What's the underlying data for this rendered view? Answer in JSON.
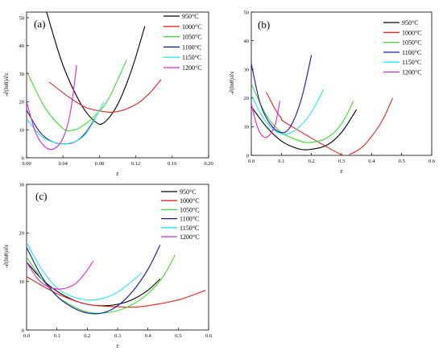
{
  "chart_data": [
    {
      "type": "line",
      "panel_label": "(a)",
      "xlabel": "ε",
      "ylabel": "-∂(lnθ)/∂ε",
      "xlim": [
        0,
        0.2
      ],
      "ylim": [
        0,
        52
      ],
      "xticks": [
        "0.00",
        "0.04",
        "0.08",
        "0.12",
        "0.16",
        "0.20"
      ],
      "xtick_values": [
        0,
        0.04,
        0.08,
        0.12,
        0.16,
        0.2
      ],
      "yticks": [
        "0",
        "10",
        "20",
        "30",
        "40",
        "50"
      ],
      "ytick_values": [
        0,
        10,
        20,
        30,
        40,
        50
      ],
      "legend_position": "top-right",
      "series": [
        {
          "name": "950°C",
          "color": "#000000",
          "x": [
            0.022,
            0.04,
            0.06,
            0.075,
            0.085,
            0.1,
            0.115,
            0.13
          ],
          "y": [
            52,
            33,
            19,
            13,
            12.5,
            19,
            31,
            47
          ]
        },
        {
          "name": "1000°C",
          "color": "#e8241c",
          "x": [
            0.025,
            0.045,
            0.065,
            0.085,
            0.1,
            0.12,
            0.135,
            0.148
          ],
          "y": [
            27,
            22,
            18,
            16.5,
            16.5,
            19,
            23,
            28
          ]
        },
        {
          "name": "1050°C",
          "color": "#3ade2a",
          "x": [
            0.0,
            0.02,
            0.04,
            0.05,
            0.06,
            0.075,
            0.09,
            0.11
          ],
          "y": [
            31,
            18,
            10.5,
            9.8,
            11,
            15,
            21,
            35
          ]
        },
        {
          "name": "1100°C",
          "color": "#1414b4",
          "x": [
            0.0,
            0.015,
            0.03,
            0.045,
            0.055,
            0.065,
            0.075
          ],
          "y": [
            17,
            9,
            5.5,
            5,
            6,
            9,
            14
          ]
        },
        {
          "name": "1150°C",
          "color": "#22e8f0",
          "x": [
            0.0,
            0.015,
            0.03,
            0.045,
            0.06,
            0.07,
            0.085
          ],
          "y": [
            14,
            8,
            5.5,
            5,
            7,
            11,
            20
          ]
        },
        {
          "name": "1200°C",
          "color": "#e020e0",
          "x": [
            0.0,
            0.01,
            0.02,
            0.03,
            0.04,
            0.048,
            0.055
          ],
          "y": [
            20,
            9,
            4,
            3.2,
            7,
            16,
            33
          ]
        }
      ]
    },
    {
      "type": "line",
      "panel_label": "(b)",
      "xlabel": "ε",
      "ylabel": "-∂(lnθ)/∂ε",
      "xlim": [
        0,
        0.6
      ],
      "ylim": [
        0,
        50
      ],
      "xticks": [
        "0.0",
        "0.1",
        "0.2",
        "0.3",
        "0.4",
        "0.5",
        "0.6"
      ],
      "xtick_values": [
        0,
        0.1,
        0.2,
        0.3,
        0.4,
        0.5,
        0.6
      ],
      "yticks": [
        "0",
        "10",
        "20",
        "30",
        "40",
        "50"
      ],
      "ytick_values": [
        0,
        10,
        20,
        30,
        40,
        50
      ],
      "legend_position": "top-right",
      "series": [
        {
          "name": "950°C",
          "color": "#000000",
          "x": [
            0.0,
            0.05,
            0.1,
            0.15,
            0.19,
            0.25,
            0.3,
            0.35
          ],
          "y": [
            17,
            10,
            5,
            2.5,
            2,
            3.5,
            8,
            16
          ]
        },
        {
          "name": "1000°C",
          "color": "#e8241c",
          "x": [
            0.05,
            0.08,
            0.1,
            0.12,
            0.3,
            0.33,
            0.37,
            0.41,
            0.44,
            0.47
          ],
          "y": [
            22,
            16,
            13,
            11,
            0.2,
            0.5,
            3,
            8,
            13,
            20
          ]
        },
        {
          "name": "1050°C",
          "color": "#3ade2a",
          "x": [
            0.0,
            0.05,
            0.1,
            0.15,
            0.19,
            0.25,
            0.3,
            0.34
          ],
          "y": [
            25,
            14,
            8,
            5.5,
            4.5,
            6,
            11,
            19
          ]
        },
        {
          "name": "1100°C",
          "color": "#1414b4",
          "x": [
            0.0,
            0.03,
            0.07,
            0.11,
            0.14,
            0.17,
            0.2
          ],
          "y": [
            32,
            18,
            10,
            8,
            12,
            21,
            35
          ]
        },
        {
          "name": "1150°C",
          "color": "#22e8f0",
          "x": [
            0.0,
            0.04,
            0.08,
            0.12,
            0.16,
            0.2,
            0.24
          ],
          "y": [
            21,
            13,
            8.5,
            7.5,
            10,
            15,
            23
          ]
        },
        {
          "name": "1200°C",
          "color": "#e020e0",
          "x": [
            0.0,
            0.02,
            0.04,
            0.06,
            0.08,
            0.095
          ],
          "y": [
            18,
            10,
            6.5,
            7,
            11,
            19
          ]
        }
      ]
    },
    {
      "type": "line",
      "panel_label": "(c)",
      "xlabel": "ε",
      "ylabel": "-∂(lnθ)/∂ε",
      "xlim": [
        0,
        0.6
      ],
      "ylim": [
        0,
        30
      ],
      "xticks": [
        "0.0",
        "0.1",
        "0.2",
        "0.3",
        "0.4",
        "0.5",
        "0.6"
      ],
      "xtick_values": [
        0,
        0.1,
        0.2,
        0.3,
        0.4,
        0.5,
        0.6
      ],
      "yticks": [
        "0",
        "10",
        "20",
        "30"
      ],
      "ytick_values": [
        0,
        10,
        20,
        30
      ],
      "legend_position": "top-right",
      "series": [
        {
          "name": "950°C",
          "color": "#000000",
          "x": [
            0.0,
            0.05,
            0.1,
            0.15,
            0.2,
            0.25,
            0.3,
            0.35,
            0.4,
            0.44
          ],
          "y": [
            14,
            10.5,
            8,
            6.3,
            5.3,
            5,
            5.3,
            6.3,
            8.2,
            10.5
          ]
        },
        {
          "name": "1000°C",
          "color": "#e8241c",
          "x": [
            0.0,
            0.1,
            0.2,
            0.3,
            0.35,
            0.4,
            0.5,
            0.59
          ],
          "y": [
            11,
            7.5,
            5.3,
            4.8,
            4.7,
            5,
            6.2,
            8.2
          ]
        },
        {
          "name": "1050°C",
          "color": "#3ade2a",
          "x": [
            0.0,
            0.05,
            0.1,
            0.15,
            0.2,
            0.25,
            0.3,
            0.35,
            0.4,
            0.45,
            0.49
          ],
          "y": [
            15,
            10.5,
            7,
            5,
            3.7,
            3.5,
            4,
            5.3,
            7.5,
            11,
            15.5
          ]
        },
        {
          "name": "1100°C",
          "color": "#1414b4",
          "x": [
            0.0,
            0.05,
            0.1,
            0.15,
            0.2,
            0.25,
            0.3,
            0.35,
            0.4,
            0.44
          ],
          "y": [
            17,
            11,
            7,
            4.7,
            3.5,
            3.5,
            5,
            8,
            12.5,
            17.5
          ]
        },
        {
          "name": "1150°C",
          "color": "#22e8f0",
          "x": [
            0.0,
            0.05,
            0.1,
            0.15,
            0.2,
            0.25,
            0.3,
            0.35,
            0.38
          ],
          "y": [
            18,
            12.5,
            8.7,
            6.9,
            6.2,
            6.5,
            7.8,
            10.2,
            11.8
          ]
        },
        {
          "name": "1200°C",
          "color": "#e020e0",
          "x": [
            0.0,
            0.04,
            0.08,
            0.12,
            0.16,
            0.19,
            0.22
          ],
          "y": [
            14,
            10.3,
            8.7,
            8.5,
            9.5,
            11.5,
            14.2
          ]
        }
      ]
    }
  ]
}
